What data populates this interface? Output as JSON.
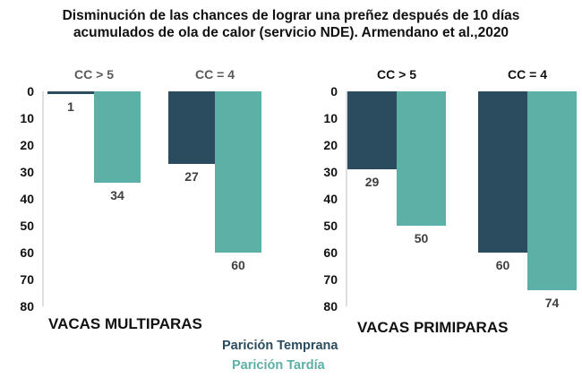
{
  "title": {
    "line1": "Disminución de las chances de lograr una preñez después de 10 días",
    "line2": "acumulados de ola de calor (servicio NDE).  Armendano et al.,2020"
  },
  "colors": {
    "temprana": "#2b4b5e",
    "tardia": "#5cb0a5",
    "axis": "#bfbfbf",
    "text": "#111111",
    "group_label": "#595959"
  },
  "legend": [
    {
      "label": "Parición Temprana",
      "color": "#2b4b5e"
    },
    {
      "label": "Parición Tardía",
      "color": "#5cb0a5"
    }
  ],
  "chart_data": [
    {
      "type": "bar",
      "title": "VACAS MULTIPARAS",
      "categories": [
        "CC > 5",
        "CC = 4"
      ],
      "series": [
        {
          "name": "Parición Temprana",
          "values": [
            1,
            27
          ]
        },
        {
          "name": "Parición Tardía",
          "values": [
            34,
            60
          ]
        }
      ],
      "yticks": [
        "0",
        "10",
        "20",
        "30",
        "40",
        "50",
        "60",
        "70",
        "80"
      ],
      "ylim": [
        0,
        80
      ],
      "inverted_y": true
    },
    {
      "type": "bar",
      "title": "VACAS PRIMIPARAS",
      "categories": [
        "CC > 5",
        "CC = 4"
      ],
      "series": [
        {
          "name": "Parición Temprana",
          "values": [
            29,
            60
          ]
        },
        {
          "name": "Parición Tardía",
          "values": [
            50,
            74
          ]
        }
      ],
      "yticks": [
        "0",
        "10",
        "20",
        "30",
        "40",
        "50",
        "60",
        "70",
        "80"
      ],
      "ylim": [
        0,
        80
      ],
      "inverted_y": true
    }
  ]
}
